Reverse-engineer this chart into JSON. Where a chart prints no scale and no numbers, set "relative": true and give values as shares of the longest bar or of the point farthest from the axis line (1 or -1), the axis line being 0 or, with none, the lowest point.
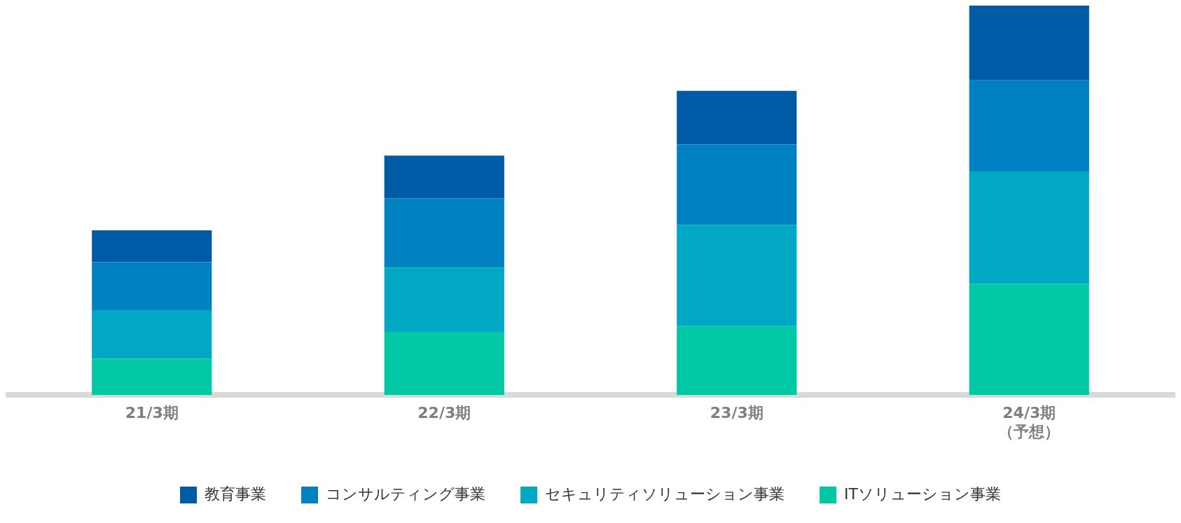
{
  "chart_data": {
    "type": "bar",
    "stacked": true,
    "relative": true,
    "legend": "bottom",
    "categories": [
      "21/3期",
      "22/3期",
      "23/3期",
      "24/3期（予想）"
    ],
    "series": [
      {
        "name": "ITソリューション事業",
        "color": "#00c8a5",
        "values": [
          0.093,
          0.162,
          0.177,
          0.286
        ]
      },
      {
        "name": "セキュリティソリューション事業",
        "color": "#00a8c3",
        "values": [
          0.125,
          0.165,
          0.26,
          0.288
        ]
      },
      {
        "name": "コンサルティング事業",
        "color": "#0081c1",
        "values": [
          0.123,
          0.178,
          0.206,
          0.234
        ]
      },
      {
        "name": "教育事業",
        "color": "#005ba6",
        "values": [
          0.082,
          0.11,
          0.138,
          0.192
        ]
      }
    ]
  }
}
